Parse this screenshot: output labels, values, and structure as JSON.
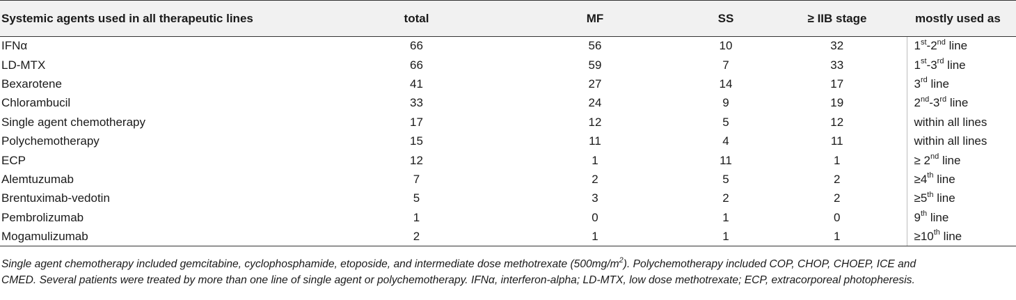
{
  "table": {
    "headers": [
      "Systemic agents used in all therapeutic lines",
      "total",
      "MF",
      "SS",
      "≥ IIB stage",
      "mostly used as"
    ],
    "rows": [
      {
        "agent": "IFNα",
        "total": "66",
        "mf": "56",
        "ss": "10",
        "stage": "32",
        "use": {
          "p1": "1",
          "s1": "st",
          "p2": "-2",
          "s2": "nd",
          "p3": " line"
        }
      },
      {
        "agent": "LD-MTX",
        "total": "66",
        "mf": "59",
        "ss": "7",
        "stage": "33",
        "use": {
          "p1": "1",
          "s1": "st",
          "p2": "-3",
          "s2": "rd",
          "p3": " line"
        }
      },
      {
        "agent": "Bexarotene",
        "total": "41",
        "mf": "27",
        "ss": "14",
        "stage": "17",
        "use": {
          "p1": "3",
          "s1": "rd",
          "p2": " line",
          "s2": "",
          "p3": ""
        }
      },
      {
        "agent": "Chlorambucil",
        "total": "33",
        "mf": "24",
        "ss": "9",
        "stage": "19",
        "use": {
          "p1": "2",
          "s1": "nd",
          "p2": "-3",
          "s2": "rd",
          "p3": " line"
        }
      },
      {
        "agent": "Single agent chemotherapy",
        "total": "17",
        "mf": "12",
        "ss": "5",
        "stage": "12",
        "use": {
          "p1": "within all lines",
          "s1": "",
          "p2": "",
          "s2": "",
          "p3": ""
        }
      },
      {
        "agent": "Polychemotherapy",
        "total": "15",
        "mf": "11",
        "ss": "4",
        "stage": "11",
        "use": {
          "p1": "within all lines",
          "s1": "",
          "p2": "",
          "s2": "",
          "p3": ""
        }
      },
      {
        "agent": "ECP",
        "total": "12",
        "mf": "1",
        "ss": "11",
        "stage": "1",
        "use": {
          "p1": "≥ 2",
          "s1": "nd",
          "p2": " line",
          "s2": "",
          "p3": ""
        }
      },
      {
        "agent": "Alemtuzumab",
        "total": "7",
        "mf": "2",
        "ss": "5",
        "stage": "2",
        "use": {
          "p1": "≥4",
          "s1": "th",
          "p2": " line",
          "s2": "",
          "p3": ""
        }
      },
      {
        "agent": "Brentuximab-vedotin",
        "total": "5",
        "mf": "3",
        "ss": "2",
        "stage": "2",
        "use": {
          "p1": "≥5",
          "s1": "th",
          "p2": " line",
          "s2": "",
          "p3": ""
        }
      },
      {
        "agent": "Pembrolizumab",
        "total": "1",
        "mf": "0",
        "ss": "1",
        "stage": "0",
        "use": {
          "p1": "9",
          "s1": "th",
          "p2": " line",
          "s2": "",
          "p3": ""
        }
      },
      {
        "agent": "Mogamulizumab",
        "total": "2",
        "mf": "1",
        "ss": "1",
        "stage": "1",
        "use": {
          "p1": "≥10",
          "s1": "th",
          "p2": " line",
          "s2": "",
          "p3": ""
        }
      }
    ]
  },
  "footnote": {
    "line1_pre": "Single agent chemotherapy included gemcitabine, cyclophosphamide, etoposide, and intermediate dose methotrexate (500mg/m",
    "line1_sup": "2",
    "line1_post": "). Polychemotherapy included COP, CHOP, CHOEP, ICE and",
    "line2": "CMED. Several patients were treated by more than one line of single agent or polychemotherapy. IFNα, interferon-alpha; LD-MTX, low dose methotrexate; ECP, extracorporeal photopheresis."
  }
}
